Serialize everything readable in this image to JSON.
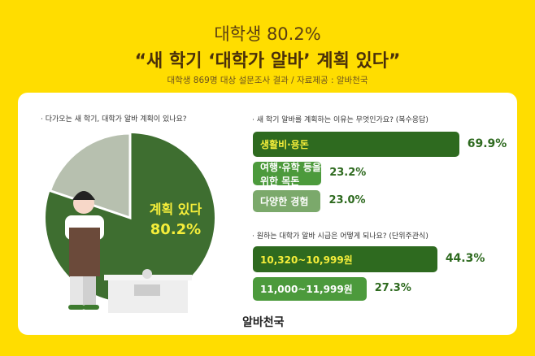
{
  "header": {
    "title_line1": "대학생 80.2%",
    "title_line2": "“새 학기 ‘대학가 알바’ 계획 있다”",
    "subtitle": "대학생 869명 대상 설문조사 결과 / 자료제공 : 알바천국"
  },
  "colors": {
    "background": "#FFDD00",
    "dark_green": "#2E6A1F",
    "mid_green": "#4C9A3C",
    "light_green": "#7BA96B",
    "grey": "#B7C0AF",
    "label_yellow": "#F5EE3A"
  },
  "chart_data": [
    {
      "type": "pie",
      "question": "· 다가오는 새 학기, 대학가 알바 계획이 있나요?",
      "slices": [
        {
          "label": "계획 있다",
          "value": 80.2,
          "value_label": "80.2%"
        },
        {
          "value": 19.8
        }
      ]
    },
    {
      "type": "bar",
      "question": "· 새 학기 알바를 계획하는 이유는 무엇인가요? (복수응답)",
      "categories": [
        "생활비·용돈",
        "여행·유학 등을 위한 목돈",
        "다양한 경험"
      ],
      "values": [
        69.9,
        23.2,
        23.0
      ],
      "labels": [
        "69.9%",
        "23.2%",
        "23.0%"
      ]
    },
    {
      "type": "bar",
      "question": "· 원하는 대학가 알바 시급은 어떻게 되나요? (단위주관식)",
      "categories": [
        "10,320~10,999원",
        "11,000~11,999원"
      ],
      "values": [
        44.3,
        27.3
      ],
      "labels": [
        "44.3%",
        "27.3%"
      ]
    }
  ],
  "footer": {
    "logo": "알바천국"
  }
}
